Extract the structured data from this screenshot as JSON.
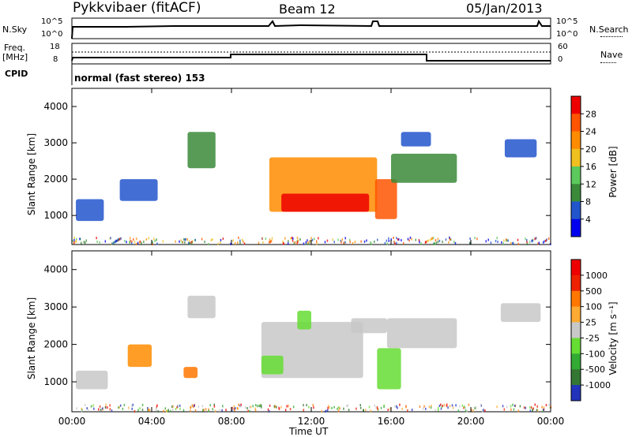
{
  "header": {
    "station": "Pykkvibaer (fitACF)",
    "beam": "Beam 12",
    "date": "05/Jan/2013"
  },
  "strip": {
    "nsky_label": "N.Sky",
    "nsky_ticks": [
      "10^5",
      "10^0"
    ],
    "nsearch_label": "N.Search",
    "nsearch_ticks": [
      "10^5",
      "10^0"
    ],
    "freq_label": "Freq.",
    "freq_unit": "[MHz]",
    "freq_ticks": [
      "18",
      "8"
    ],
    "nave_label": "Nave",
    "nave_ticks": [
      "60",
      "0"
    ],
    "cpid_label": "CPID",
    "cpid_value": "normal (fast stereo) 153"
  },
  "chart_data": [
    {
      "type": "heatmap",
      "panel": "power",
      "ylabel": "Slant Range [km]",
      "yticks": [
        1000,
        2000,
        3000,
        4000
      ],
      "ylim": [
        200,
        4500
      ],
      "xlim": [
        0,
        24
      ],
      "colorbar": {
        "label": "Power [dB]",
        "ticks": [
          "4",
          "8",
          "12",
          "16",
          "20",
          "24",
          "28"
        ],
        "colors": [
          "#0000ee",
          "#2255cc",
          "#3a8a3a",
          "#5cc95c",
          "#f0c020",
          "#ff8c00",
          "#ff5500",
          "#ee0000"
        ]
      },
      "regions": [
        {
          "t0": 0.2,
          "t1": 1.6,
          "r0": 850,
          "r1": 1450,
          "color": "#2255cc"
        },
        {
          "t0": 2.4,
          "t1": 4.3,
          "r0": 1400,
          "r1": 2000,
          "color": "#2255cc"
        },
        {
          "t0": 5.8,
          "t1": 7.2,
          "r0": 2300,
          "r1": 3300,
          "color": "#3a8a3a"
        },
        {
          "t0": 9.9,
          "t1": 15.3,
          "r0": 1100,
          "r1": 2600,
          "color": "#ff8c00"
        },
        {
          "t0": 10.5,
          "t1": 14.9,
          "r0": 1100,
          "r1": 1600,
          "color": "#ee0000"
        },
        {
          "t0": 15.2,
          "t1": 16.3,
          "r0": 900,
          "r1": 2000,
          "color": "#ff5500"
        },
        {
          "t0": 16.0,
          "t1": 19.3,
          "r0": 1900,
          "r1": 2700,
          "color": "#3a8a3a"
        },
        {
          "t0": 16.5,
          "t1": 18.0,
          "r0": 2900,
          "r1": 3300,
          "color": "#2255cc"
        },
        {
          "t0": 21.7,
          "t1": 23.3,
          "r0": 2600,
          "r1": 3100,
          "color": "#2255cc"
        }
      ]
    },
    {
      "type": "heatmap",
      "panel": "velocity",
      "xlabel": "Time UT",
      "xticks": [
        "00:00",
        "04:00",
        "08:00",
        "12:00",
        "16:00",
        "20:00",
        "00:00"
      ],
      "ylabel": "Slant Range [km]",
      "yticks": [
        1000,
        2000,
        3000,
        4000
      ],
      "ylim": [
        200,
        4500
      ],
      "xlim": [
        0,
        24
      ],
      "colorbar": {
        "label": "Velocity [m s⁻¹]",
        "ticks": [
          "1000",
          "500",
          "100",
          "25",
          "-25",
          "-100",
          "-500",
          "-1000"
        ],
        "colors": [
          "#2233bb",
          "#337733",
          "#33aa33",
          "#66dd33",
          "#c8c8c8",
          "#ffaa33",
          "#ff7700",
          "#ee2200",
          "#ee0000"
        ]
      },
      "regions": [
        {
          "t0": 0.2,
          "t1": 1.8,
          "r0": 800,
          "r1": 1300,
          "color": "#c8c8c8"
        },
        {
          "t0": 2.8,
          "t1": 4.0,
          "r0": 1400,
          "r1": 2000,
          "color": "#ff8c00"
        },
        {
          "t0": 5.6,
          "t1": 6.3,
          "r0": 1100,
          "r1": 1400,
          "color": "#ff7700"
        },
        {
          "t0": 5.8,
          "t1": 7.2,
          "r0": 2700,
          "r1": 3300,
          "color": "#c8c8c8"
        },
        {
          "t0": 9.5,
          "t1": 14.6,
          "r0": 1100,
          "r1": 2600,
          "color": "#c8c8c8"
        },
        {
          "t0": 9.5,
          "t1": 10.6,
          "r0": 1200,
          "r1": 1700,
          "color": "#66dd33"
        },
        {
          "t0": 11.3,
          "t1": 12.0,
          "r0": 2400,
          "r1": 2900,
          "color": "#66dd33"
        },
        {
          "t0": 14.0,
          "t1": 15.8,
          "r0": 2300,
          "r1": 2700,
          "color": "#c8c8c8"
        },
        {
          "t0": 15.3,
          "t1": 16.5,
          "r0": 800,
          "r1": 1900,
          "color": "#66dd33"
        },
        {
          "t0": 15.8,
          "t1": 19.3,
          "r0": 1900,
          "r1": 2700,
          "color": "#c8c8c8"
        },
        {
          "t0": 21.5,
          "t1": 23.5,
          "r0": 2600,
          "r1": 3100,
          "color": "#c8c8c8"
        }
      ]
    }
  ]
}
